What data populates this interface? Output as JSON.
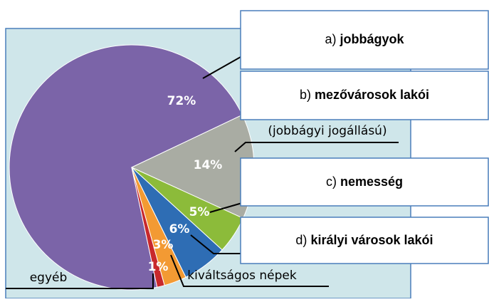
{
  "chart_data": {
    "type": "pie",
    "categories": [
      "jobbágyok",
      "mezővárosok lakói",
      "nemesség",
      "királyi városok lakói",
      "kiváltságos népek",
      "egyéb"
    ],
    "prefixes": [
      "a)",
      "b)",
      "c)",
      "d)"
    ],
    "annotation": "(jobbágyi jogállású)",
    "values": [
      72,
      14,
      5,
      6,
      3,
      1
    ],
    "value_labels": [
      "72%",
      "14%",
      "5%",
      "6%",
      "3%",
      "1%"
    ],
    "colors": [
      "#7b64a8",
      "#a9aca3",
      "#8cbb3a",
      "#2e6db4",
      "#f39a33",
      "#c8282c"
    ]
  }
}
